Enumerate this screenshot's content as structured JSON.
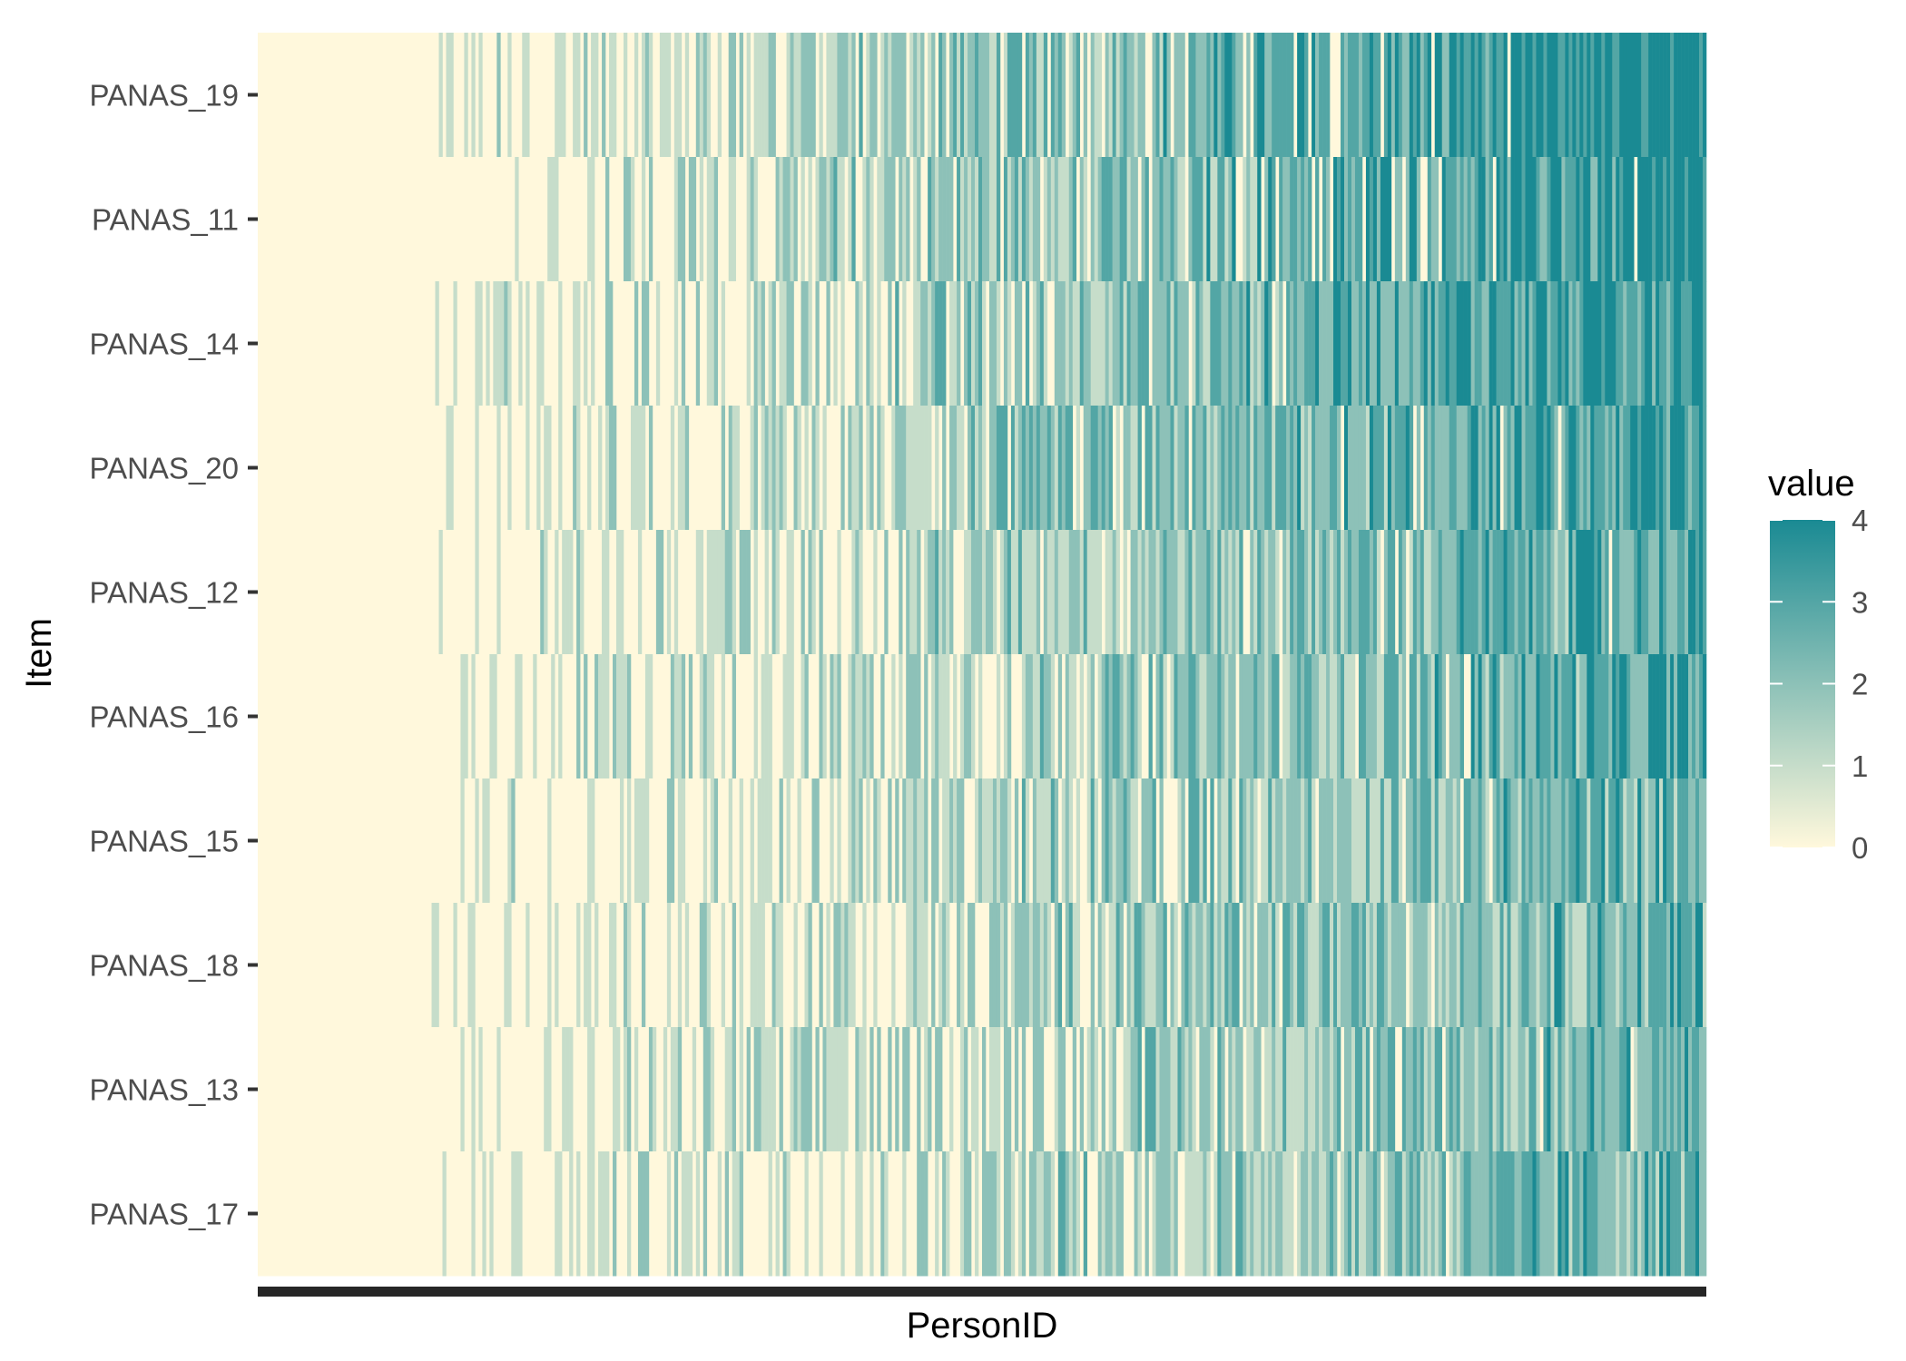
{
  "chart_data": {
    "type": "heatmap",
    "title": "",
    "xlabel": "PersonID",
    "ylabel": "Item",
    "items_top_to_bottom": [
      "PANAS_19",
      "PANAS_11",
      "PANAS_14",
      "PANAS_20",
      "PANAS_12",
      "PANAS_16",
      "PANAS_15",
      "PANAS_18",
      "PANAS_13",
      "PANAS_17"
    ],
    "item_mean_levels": [
      2.4,
      2.2,
      2.2,
      2.0,
      1.8,
      1.8,
      1.6,
      1.6,
      1.6,
      1.6
    ],
    "persons_sorted_by_total": true,
    "x_tick_labels_shown": false,
    "zero_block_fraction": 0.12,
    "value_range": [
      0,
      4
    ],
    "legend": {
      "title": "value",
      "breaks": [
        0,
        1,
        2,
        3,
        4
      ],
      "colors": [
        "#fff8dc",
        "#1a8a93"
      ],
      "position": "right"
    },
    "grid": false
  }
}
